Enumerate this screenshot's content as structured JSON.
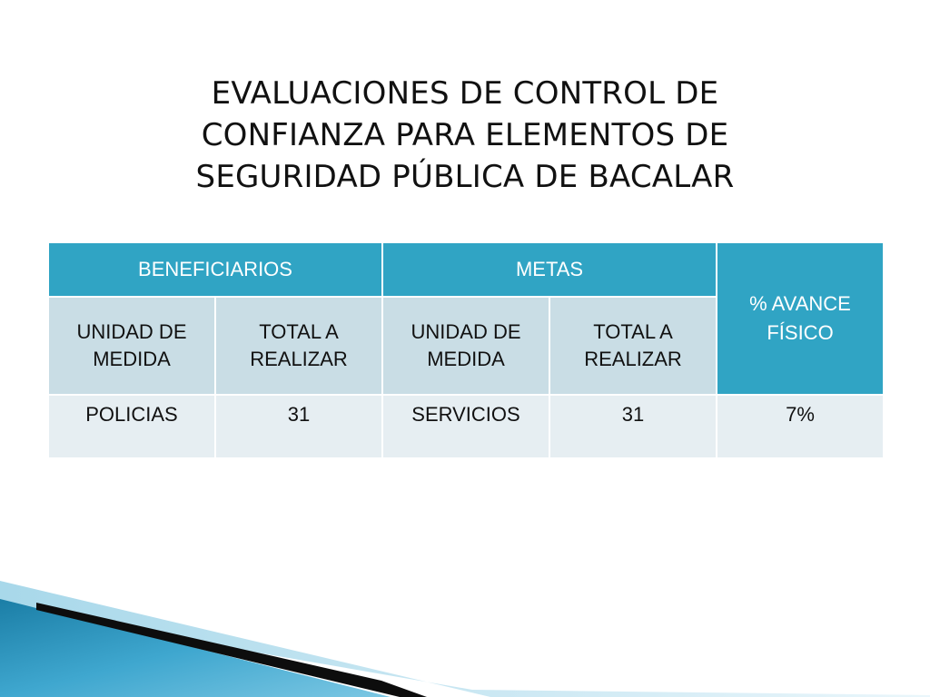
{
  "slide": {
    "title_lines": [
      "EVALUACIONES DE CONTROL DE",
      "CONFIANZA PARA ELEMENTOS DE",
      "SEGURIDAD PÚBLICA DE BACALAR"
    ]
  },
  "table": {
    "groups": {
      "beneficiarios": "BENEFICIARIOS",
      "metas": "METAS",
      "avance": [
        "% AVANCE",
        "FÍSICO"
      ]
    },
    "subheaders": {
      "beneficiarios_unidad": [
        "UNIDAD DE",
        "MEDIDA"
      ],
      "beneficiarios_total": [
        "TOTAL A",
        "REALIZAR"
      ],
      "metas_unidad": [
        "UNIDAD DE",
        "MEDIDA"
      ],
      "metas_total": [
        "TOTAL A",
        "REALIZAR"
      ]
    },
    "rows": [
      {
        "beneficiarios_unidad": "POLICIAS",
        "beneficiarios_total": "31",
        "metas_unidad": "SERVICIOS",
        "metas_total": "31",
        "avance": "7%"
      }
    ]
  },
  "colors": {
    "header_blue": "#30a4c4",
    "subheader_gray": "#c9dde5",
    "row_gray": "#e6eef2"
  }
}
